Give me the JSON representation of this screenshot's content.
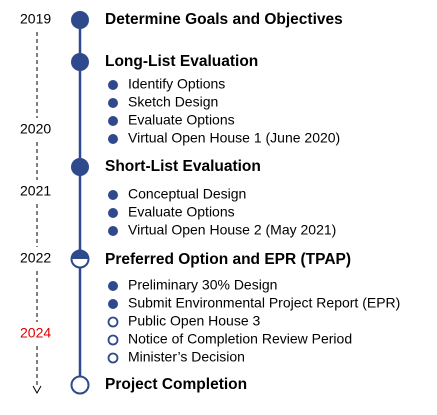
{
  "years": [
    "2019",
    "2020",
    "2021",
    "2022",
    "2024"
  ],
  "stages": [
    {
      "title": "Determine Goals and Objectives",
      "items": []
    },
    {
      "title": "Long-List Evaluation",
      "items": [
        "Identify Options",
        "Sketch Design",
        "Evaluate Options",
        "Virtual Open House 1 (June 2020)"
      ]
    },
    {
      "title": "Short-List Evaluation",
      "items": [
        "Conceptual Design",
        "Evaluate Options",
        "Virtual Open House 2 (May 2021)"
      ]
    },
    {
      "title": "Preferred Option and EPR (TPAP)",
      "items": [
        "Preliminary 30% Design",
        "Submit Environmental Project Report (EPR)",
        "Public Open House 3",
        "Notice of Completion Review Period",
        "Minister’s Decision"
      ]
    },
    {
      "title": "Project Completion",
      "items": []
    }
  ]
}
